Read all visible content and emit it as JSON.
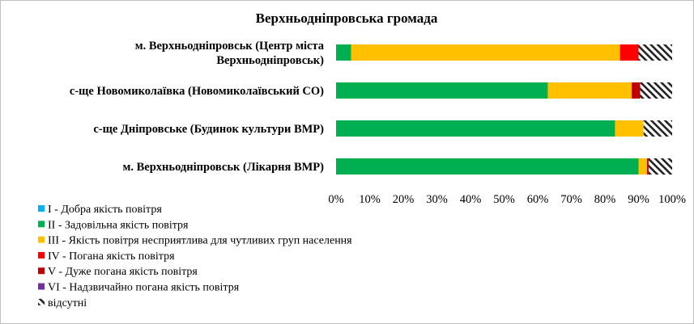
{
  "chart_data": {
    "type": "bar",
    "orientation": "horizontal",
    "stacked": true,
    "title": "Верхньодніпровська громада",
    "categories": [
      [
        "м. Верхньодніпровськ (Центр міста",
        "Верхньодніпровськ)"
      ],
      [
        "с-ще Новомиколаївка (Новомиколаївський СО)"
      ],
      [
        "с-ще Дніпровське (Будинок культури ВМР)"
      ],
      [
        "м. Верхньодніпровськ (Лікарня ВМР)"
      ]
    ],
    "series": [
      {
        "name": "I - Добра якість  повітря",
        "color": "#00b0f0",
        "pattern": "solid",
        "values": [
          0,
          0,
          0,
          0
        ]
      },
      {
        "name": "II - Задовільна якість  повітря",
        "color": "#00b050",
        "pattern": "solid",
        "values": [
          4.5,
          63,
          83,
          90
        ]
      },
      {
        "name": "III - Якість  повітря несприятлива для чутливих груп населення",
        "color": "#ffc000",
        "pattern": "solid",
        "values": [
          80,
          25,
          8.5,
          2.5
        ]
      },
      {
        "name": "IV - Погана якість  повітря",
        "color": "#ff0000",
        "pattern": "solid",
        "values": [
          5.5,
          0,
          0,
          0
        ]
      },
      {
        "name": "V - Дуже погана якість  повітря",
        "color": "#c00000",
        "pattern": "solid",
        "values": [
          0,
          2.5,
          0,
          0.5
        ]
      },
      {
        "name": "VI - Надзвичайно погана якість  повітря",
        "color": "#7030a0",
        "pattern": "solid",
        "values": [
          0,
          0,
          0,
          0
        ]
      },
      {
        "name": "відсутні",
        "color": "#000000",
        "pattern": "hatch",
        "values": [
          10,
          9.5,
          8.5,
          7
        ]
      }
    ],
    "xlim": [
      0,
      100
    ],
    "xticks": [
      "0%",
      "10%",
      "20%",
      "30%",
      "40%",
      "50%",
      "60%",
      "70%",
      "80%",
      "90%",
      "100%"
    ],
    "grid": false,
    "legend_position": "bottom-left"
  }
}
